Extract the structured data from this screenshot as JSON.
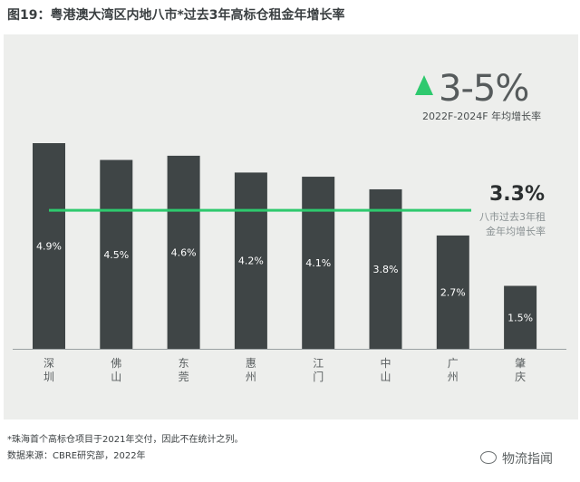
{
  "title": "图19：粤港澳大湾区内地八市*过去3年高标仓租金年增长率",
  "range": {
    "value": "3-5%",
    "caption": "2022F-2024F 年均增长率",
    "accent_color": "#2ec96e"
  },
  "average": {
    "value": "3.3%",
    "caption": "八市过去3年租金年均增长率"
  },
  "footnote": "*珠海首个高标仓项目于2021年交付，因此不在统计之列。",
  "source": "数据来源：CBRE研究部，2022年",
  "watermark": {
    "text": "物流指闻",
    "icon": "wechat-icon"
  },
  "chart_data": {
    "type": "bar",
    "categories": [
      "深圳",
      "佛山",
      "东莞",
      "惠州",
      "江门",
      "中山",
      "广州",
      "肇庆"
    ],
    "values": [
      4.9,
      4.5,
      4.6,
      4.2,
      4.1,
      3.8,
      2.7,
      1.5
    ],
    "data_labels": [
      "4.9%",
      "4.5%",
      "4.6%",
      "4.2%",
      "4.1%",
      "3.8%",
      "2.7%",
      "1.5%"
    ],
    "reference_line": {
      "value": 3.3,
      "color": "#2ec96e"
    },
    "bar_color": "#3f4546",
    "grid": false,
    "ylim": [
      0,
      5.5
    ]
  }
}
